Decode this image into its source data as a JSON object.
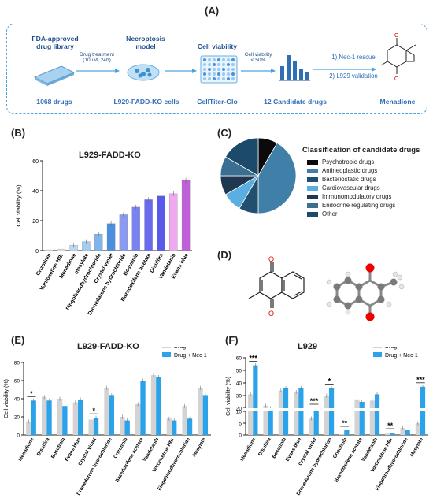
{
  "panels": {
    "a": "(A)",
    "b": "(B)",
    "c": "(C)",
    "d": "(D)",
    "e": "(E)",
    "f": "(F)"
  },
  "flow": {
    "step1_title": "FDA-approved drug library",
    "step1_title_l1": "FDA-approved",
    "step1_title_l2": "drug library",
    "step1_bottom": "1068 drugs",
    "arrow1_top": "Drug treatment",
    "arrow1_bottom": "(10μM, 24h)",
    "step2_title_l1": "Necroptosis",
    "step2_title_l2": "model",
    "step2_bottom": "L929-FADD-KO cells",
    "step3_title": "Cell viability",
    "step3_bottom": "CellTiter-Glo",
    "arrow3_top": "Cell viability",
    "arrow3_bottom": "< 50%",
    "step4_bottom": "12 Candidate drugs",
    "rescue1": "1) Nec-1 rescue",
    "rescue2": "2) L929 validation",
    "step5_bottom": "Menadione"
  },
  "pie": {
    "legend_title": "Classification of candidate drugs",
    "colors": {
      "accent_dark": "#0b0b0b"
    },
    "items": [
      {
        "label": "Psychotropic drugs",
        "color": "#0b0b0b",
        "value": 1
      },
      {
        "label": "Antineoplastic drugs",
        "color": "#3f7fa8",
        "value": 5
      },
      {
        "label": "Bacteriostatic drugs",
        "color": "#21506f",
        "value": 1
      },
      {
        "label": "Cardiovascular drugs",
        "color": "#5aaee0",
        "value": 1
      },
      {
        "label": "Immunomodulatory drugs",
        "color": "#1d3850",
        "value": 1
      },
      {
        "label": "Endocrine regulating drugs",
        "color": "#3a6f92",
        "value": 1
      },
      {
        "label": "Other",
        "color": "#1b4a6a",
        "value": 2
      }
    ]
  },
  "chart_data": [
    {
      "type": "bar",
      "title": "L929-FADD-KO",
      "ylabel": "Cell viability (%)",
      "ylim": [
        0,
        60
      ],
      "yticks": [
        "0",
        "20",
        "40",
        "60"
      ],
      "categories": [
        "Crizotinib",
        "Vortioxetine HBr",
        "Menadione",
        "mesylate",
        "Fingolimodhydrochloride",
        "Crystal violet",
        "Dronedarone hydrochloride",
        "Bosutinib",
        "Bazedoxifene acetate",
        "Disulfira",
        "Vandetanib",
        "Evans blue"
      ],
      "values": [
        0.5,
        1,
        3.5,
        6,
        11,
        18,
        24,
        29,
        34,
        36.5,
        38,
        47
      ],
      "colors": [
        "#e6f1fb",
        "#d6e8f8",
        "#bcd9f4",
        "#a4ccf0",
        "#7fb5ea",
        "#4a8fe0",
        "#8a9af0",
        "#7a82f2",
        "#6a6af0",
        "#5a5ae8",
        "#f0a8f0",
        "#c060d8"
      ]
    },
    {
      "type": "bar",
      "title": "L929-FADD-KO",
      "ylabel": "Cell viability (%)",
      "ylim": [
        0,
        80
      ],
      "yticks": [
        "0",
        "20",
        "40",
        "60",
        "80"
      ],
      "legend": [
        "Drug",
        "Drug + Nec-1"
      ],
      "categories": [
        "Menadione",
        "Disulfira",
        "Bosutinib",
        "Evans blue",
        "Crystal violet",
        "Dronedarone hydrochloride",
        "Crizotinib",
        "Bazedoxifene acetate",
        "Vandetanib",
        "Vortioxetine HBr",
        "Fingolimodhydrochloride",
        "Mesylate"
      ],
      "series": [
        {
          "name": "Drug",
          "values": [
            15,
            42,
            40,
            36,
            17,
            52,
            20,
            34,
            66,
            18,
            32,
            52
          ]
        },
        {
          "name": "Drug + Nec-1",
          "values": [
            38,
            38,
            32,
            39,
            19,
            44,
            16,
            60,
            64,
            16,
            18,
            44
          ]
        }
      ],
      "significance": [
        {
          "index": 0,
          "label": "*"
        },
        {
          "index": 4,
          "label": "*"
        }
      ]
    },
    {
      "type": "bar",
      "title": "L929",
      "ylabel": "Cell viability (%)",
      "ylim": [
        0,
        60
      ],
      "yticks": [
        "0",
        "5",
        "10",
        "20",
        "30",
        "40",
        "50",
        "60"
      ],
      "legend": [
        "Drug",
        "Drug + Nec-1"
      ],
      "categories": [
        "Menadione",
        "Disulfira",
        "Bosutinib",
        "Evans blue",
        "Crystal violet",
        "Dronedarone hydrochloride",
        "Crizotinib",
        "Bazedoxifene acetate",
        "Vandetanib",
        "Vortioxetine HBr",
        "Fingolimodhydrochloride",
        "Mesylate"
      ],
      "series": [
        {
          "name": "Drug",
          "values": [
            31,
            22,
            34,
            33,
            7,
            30,
            0.3,
            27,
            26,
            0.6,
            3,
            5
          ]
        },
        {
          "name": "Drug + Nec-1",
          "values": [
            54,
            20,
            36,
            36,
            16,
            36,
            2,
            25,
            31,
            1,
            2,
            37
          ]
        }
      ],
      "significance": [
        {
          "index": 0,
          "label": "***"
        },
        {
          "index": 4,
          "label": "***"
        },
        {
          "index": 5,
          "label": "*"
        },
        {
          "index": 6,
          "label": "**"
        },
        {
          "index": 9,
          "label": "**"
        },
        {
          "index": 11,
          "label": "***"
        }
      ]
    }
  ]
}
